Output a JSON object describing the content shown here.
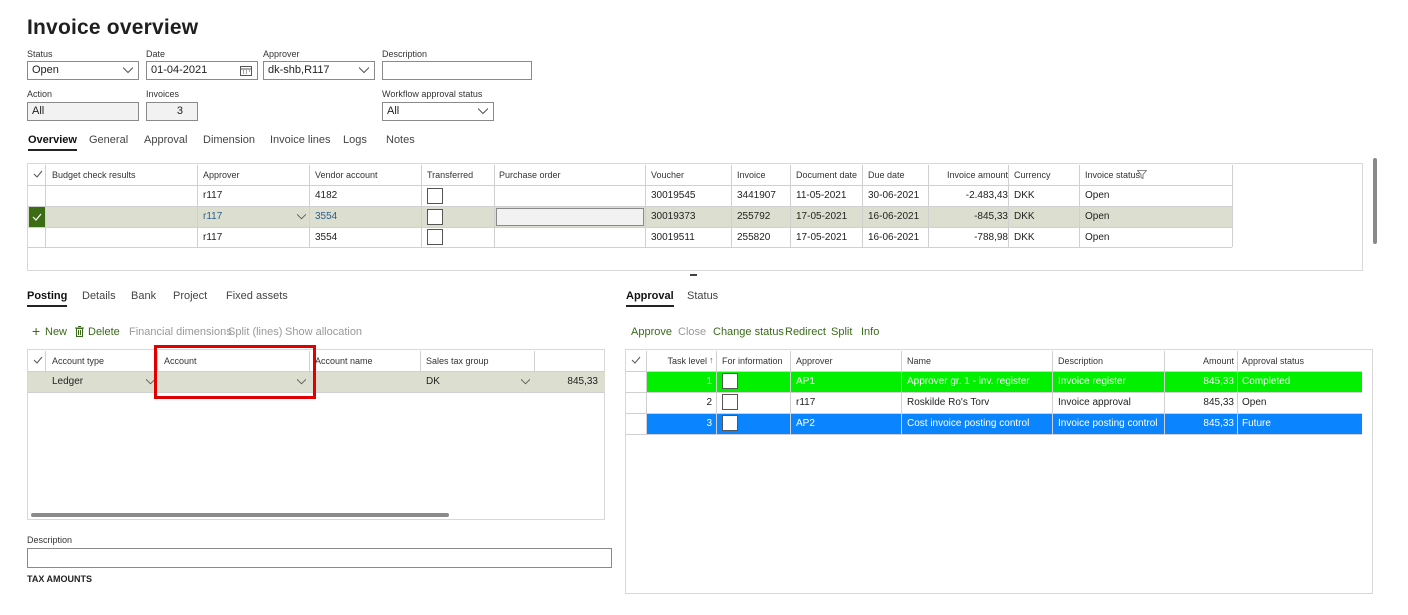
{
  "title": "Invoice overview",
  "filters": {
    "status": {
      "label": "Status",
      "value": "Open"
    },
    "date": {
      "label": "Date",
      "value": "01-04-2021"
    },
    "approver": {
      "label": "Approver",
      "value": "dk-shb,R117"
    },
    "description": {
      "label": "Description",
      "value": ""
    },
    "action": {
      "label": "Action",
      "value": "All"
    },
    "invoices": {
      "label": "Invoices",
      "value": "3"
    },
    "workflow": {
      "label": "Workflow approval status",
      "value": "All"
    }
  },
  "main_tabs": [
    "Overview",
    "General",
    "Approval",
    "Dimension",
    "Invoice lines",
    "Logs",
    "Notes"
  ],
  "invoice_grid": {
    "headers": [
      "Budget check results",
      "Approver",
      "Vendor account",
      "Transferred",
      "Purchase order",
      "Voucher",
      "Invoice",
      "Document date",
      "Due date",
      "Invoice amount",
      "Currency",
      "Invoice status"
    ],
    "rows": [
      {
        "approver": "r117",
        "vendor": "4182",
        "voucher": "30019545",
        "invoice": "3441907",
        "docdate": "11-05-2021",
        "duedate": "30-06-2021",
        "amount": "-2.483,43",
        "currency": "DKK",
        "status": "Open"
      },
      {
        "approver": "r117",
        "vendor": "3554",
        "voucher": "30019373",
        "invoice": "255792",
        "docdate": "17-05-2021",
        "duedate": "16-06-2021",
        "amount": "-845,33",
        "currency": "DKK",
        "status": "Open"
      },
      {
        "approver": "r117",
        "vendor": "3554",
        "voucher": "30019511",
        "invoice": "255820",
        "docdate": "17-05-2021",
        "duedate": "16-06-2021",
        "amount": "-788,98",
        "currency": "DKK",
        "status": "Open"
      }
    ]
  },
  "posting_tabs": [
    "Posting",
    "Details",
    "Bank",
    "Project",
    "Fixed assets"
  ],
  "posting_toolbar": {
    "new": "New",
    "delete": "Delete",
    "fin_dim": "Financial dimensions",
    "split": "Split (lines)",
    "show_alloc": "Show allocation"
  },
  "posting_grid": {
    "headers": [
      "Account type",
      "Account",
      "Account name",
      "Sales tax group"
    ],
    "row": {
      "account_type": "Ledger",
      "account": "",
      "account_name": "",
      "tax_group": "DK",
      "amount": "845,33"
    }
  },
  "description_label": "Description",
  "tax_amounts": "TAX AMOUNTS",
  "approval_tabs": [
    "Approval",
    "Status"
  ],
  "approval_toolbar": {
    "approve": "Approve",
    "close": "Close",
    "change_status": "Change status",
    "redirect": "Redirect",
    "split": "Split",
    "info": "Info"
  },
  "approval_grid": {
    "headers": [
      "Task level",
      "For information",
      "Approver",
      "Name",
      "Description",
      "Amount",
      "Approval status"
    ],
    "rows": [
      {
        "level": "1",
        "approver": "AP1",
        "name": "Approver gr. 1 - inv. register",
        "desc": "Invoice register",
        "amount": "845,33",
        "status": "Completed",
        "color": "#00f000",
        "text": "#ffffff"
      },
      {
        "level": "2",
        "approver": "r117",
        "name": "Roskilde Ro's Torv",
        "desc": "Invoice approval",
        "amount": "845,33",
        "status": "Open",
        "color": "#ffffff",
        "text": "#222222"
      },
      {
        "level": "3",
        "approver": "AP2",
        "name": "Cost invoice posting control",
        "desc": "Invoice posting control",
        "amount": "845,33",
        "status": "Future",
        "color": "#0a84ff",
        "text": "#ffffff"
      }
    ]
  },
  "colors": {
    "selected_row": "#dcdfcf",
    "checkmark_bg": "#3c6c14",
    "highlight_border": "#e00000"
  }
}
